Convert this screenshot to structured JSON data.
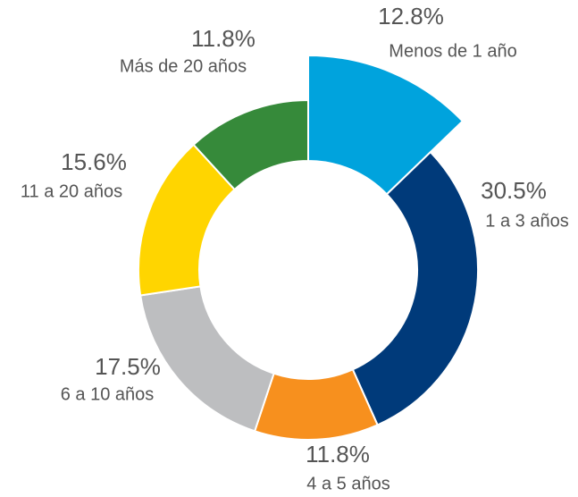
{
  "chart_data": {
    "type": "donut",
    "categories": [
      "Menos de 1 año",
      "1 a 3 años",
      "4 a 5 años",
      "6 a 10 años",
      "11 a 20 años",
      "Más de 20 años"
    ],
    "values": [
      12.8,
      30.5,
      11.8,
      17.5,
      15.6,
      11.8
    ],
    "value_labels": [
      "12.8%",
      "30.5%",
      "11.8%",
      "17.5%",
      "15.6%",
      "11.8%"
    ],
    "colors": [
      "#00a3dd",
      "#003a7a",
      "#f7901e",
      "#bdbec0",
      "#ffd500",
      "#368a3a"
    ],
    "explode": [
      true,
      false,
      false,
      false,
      false,
      false
    ]
  }
}
